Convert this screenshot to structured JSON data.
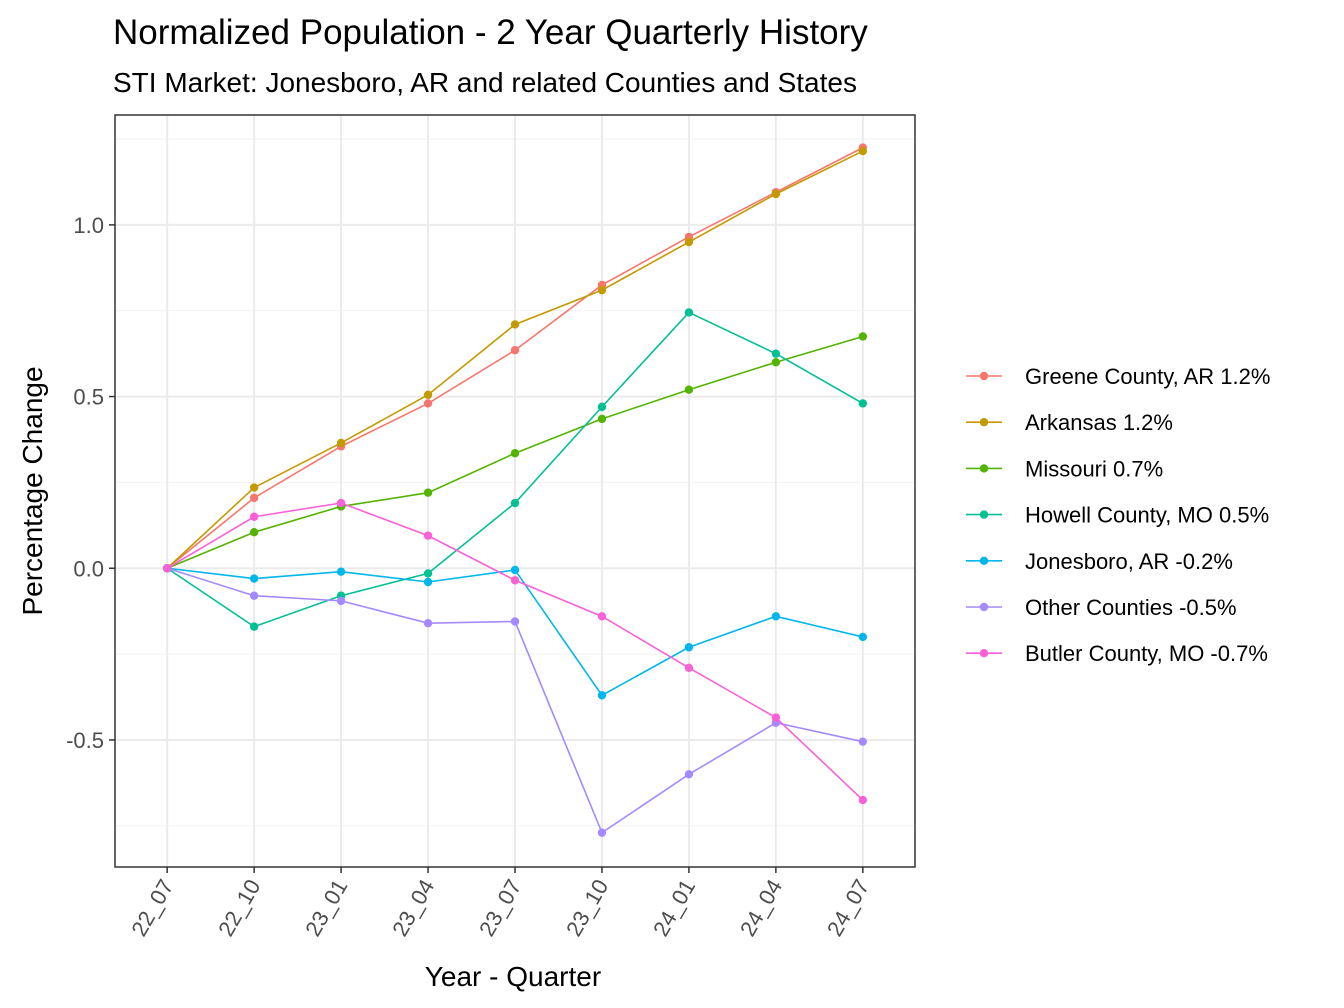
{
  "chart_data": {
    "type": "line",
    "title": "Normalized Population - 2 Year Quarterly History",
    "subtitle": "STI Market: Jonesboro, AR and related Counties and States",
    "xlabel": "Year - Quarter",
    "ylabel": "Percentage Change",
    "categories": [
      "22_07",
      "22_10",
      "23_01",
      "23_04",
      "23_07",
      "23_10",
      "24_01",
      "24_04",
      "24_07"
    ],
    "ylim": [
      -0.87,
      1.32
    ],
    "yticks": [
      -0.5,
      0.0,
      0.5,
      1.0
    ],
    "ytick_labels": [
      "-0.5",
      "0.0",
      "0.5",
      "1.0"
    ],
    "grid": true,
    "legend_position": "right",
    "series": [
      {
        "name": "Greene County, AR 1.2%",
        "color": "#F8766D",
        "values": [
          0.0,
          0.205,
          0.355,
          0.48,
          0.635,
          0.825,
          0.965,
          1.095,
          1.225
        ]
      },
      {
        "name": "Arkansas 1.2%",
        "color": "#C49A00",
        "values": [
          0.0,
          0.235,
          0.365,
          0.505,
          0.71,
          0.81,
          0.95,
          1.09,
          1.215
        ]
      },
      {
        "name": "Missouri 0.7%",
        "color": "#53B400",
        "values": [
          0.0,
          0.105,
          0.18,
          0.22,
          0.335,
          0.435,
          0.52,
          0.6,
          0.675
        ]
      },
      {
        "name": "Howell County, MO 0.5%",
        "color": "#00C094",
        "values": [
          0.0,
          -0.17,
          -0.08,
          -0.015,
          0.19,
          0.47,
          0.745,
          0.625,
          0.48
        ]
      },
      {
        "name": "Jonesboro, AR -0.2%",
        "color": "#00B6EB",
        "values": [
          0.0,
          -0.03,
          -0.01,
          -0.04,
          -0.005,
          -0.37,
          -0.23,
          -0.14,
          -0.2
        ]
      },
      {
        "name": "Other Counties -0.5%",
        "color": "#A58AFF",
        "values": [
          0.0,
          -0.08,
          -0.095,
          -0.16,
          -0.155,
          -0.77,
          -0.6,
          -0.45,
          -0.505
        ]
      },
      {
        "name": "Butler County, MO -0.7%",
        "color": "#FB61D7",
        "values": [
          0.0,
          0.15,
          0.19,
          0.095,
          -0.035,
          -0.14,
          -0.29,
          -0.435,
          -0.675
        ]
      }
    ]
  }
}
